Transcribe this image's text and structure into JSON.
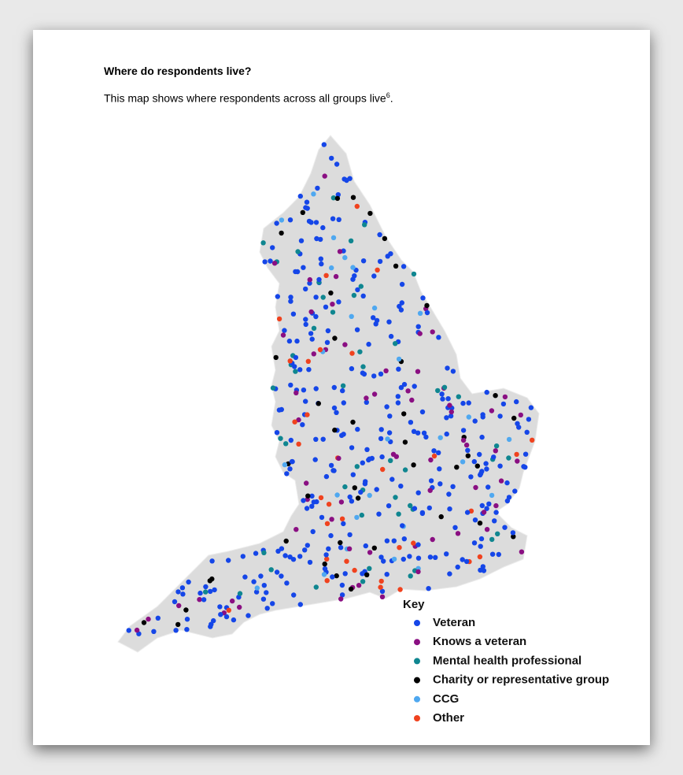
{
  "heading": "Where do respondents live?",
  "intro": {
    "text": "This map shows where respondents across all groups live",
    "footnote": "6",
    "end": "."
  },
  "map": {
    "key_title": "Key",
    "key": [
      {
        "label": "Veteran",
        "color": "#1546e8"
      },
      {
        "label": "Knows a veteran",
        "color": "#8a0f82"
      },
      {
        "label": "Mental health professional",
        "color": "#0f8690"
      },
      {
        "label": "Charity or representative group",
        "color": "#000000"
      },
      {
        "label": "CCG",
        "color": "#4fa8f0"
      },
      {
        "label": "Other",
        "color": "#f0421e"
      }
    ]
  }
}
